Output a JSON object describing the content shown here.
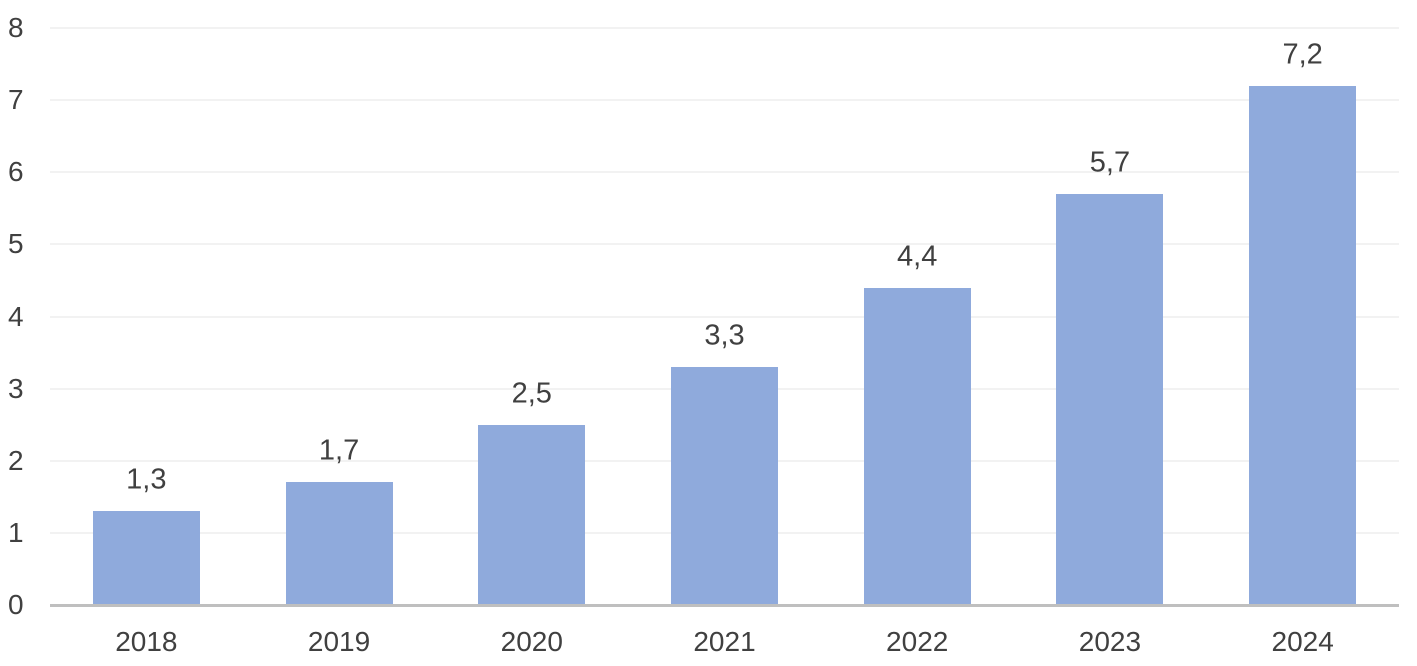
{
  "chart_data": {
    "type": "bar",
    "title": "",
    "xlabel": "",
    "ylabel": "",
    "categories": [
      "2018",
      "2019",
      "2020",
      "2021",
      "2022",
      "2023",
      "2024"
    ],
    "values": [
      1.3,
      1.7,
      2.5,
      3.3,
      4.4,
      5.7,
      7.2
    ],
    "data_labels": [
      "1,3",
      "1,7",
      "2,5",
      "3,3",
      "4,4",
      "5,7",
      "7,2"
    ],
    "ylim": [
      0,
      8
    ],
    "ytick_interval": 1,
    "ytick_labels": [
      "0",
      "1",
      "2",
      "3",
      "4",
      "5",
      "6",
      "7",
      "8"
    ],
    "grid": true,
    "legend": false,
    "decimal_separator": ",",
    "colors": {
      "bar_fill": "#8FAADC",
      "axis_line": "#BFBFBF",
      "gridline": "#F2F2F2",
      "text": "#404040",
      "background": "#FFFFFF"
    }
  }
}
